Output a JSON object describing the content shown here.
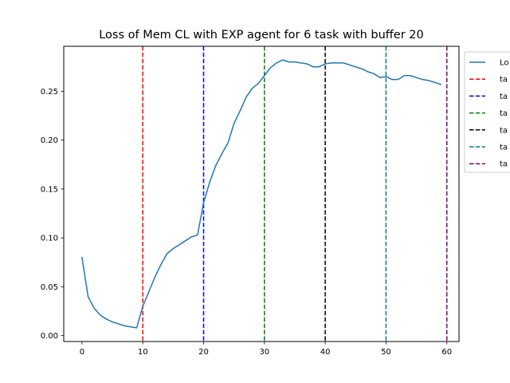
{
  "chart_data": {
    "type": "line",
    "title": "Loss of Mem CL with EXP agent for 6 task with buffer 20",
    "xlabel": "",
    "ylabel": "",
    "xlim": [
      -3,
      62
    ],
    "ylim": [
      -0.006,
      0.296
    ],
    "grid": false,
    "legend_placement": "outside-right-top",
    "x_ticks": [
      0,
      10,
      20,
      30,
      40,
      50,
      60
    ],
    "x_tick_labels": [
      "0",
      "10",
      "20",
      "30",
      "40",
      "50",
      "60"
    ],
    "y_ticks": [
      0.0,
      0.05,
      0.1,
      0.15,
      0.2,
      0.25
    ],
    "y_tick_labels": [
      "0.00",
      "0.05",
      "0.10",
      "0.15",
      "0.20",
      "0.25"
    ],
    "series": [
      {
        "name": "Lo",
        "color": "#1f77b4",
        "x": [
          0,
          1,
          2,
          3,
          4,
          5,
          6,
          7,
          8,
          9,
          10,
          11,
          12,
          13,
          14,
          15,
          16,
          17,
          18,
          19,
          20,
          21,
          22,
          23,
          24,
          25,
          26,
          27,
          28,
          29,
          30,
          31,
          32,
          33,
          34,
          35,
          36,
          37,
          38,
          39,
          40,
          41,
          42,
          43,
          44,
          45,
          46,
          47,
          48,
          49,
          50,
          51,
          52,
          53,
          54,
          55,
          56,
          57,
          58,
          59
        ],
        "y": [
          0.08,
          0.04,
          0.028,
          0.021,
          0.017,
          0.014,
          0.012,
          0.01,
          0.009,
          0.008,
          0.03,
          0.045,
          0.06,
          0.073,
          0.084,
          0.089,
          0.093,
          0.097,
          0.101,
          0.103,
          0.136,
          0.157,
          0.174,
          0.186,
          0.197,
          0.217,
          0.23,
          0.244,
          0.253,
          0.258,
          0.266,
          0.274,
          0.279,
          0.282,
          0.28,
          0.28,
          0.279,
          0.278,
          0.275,
          0.275,
          0.278,
          0.279,
          0.279,
          0.279,
          0.277,
          0.275,
          0.273,
          0.27,
          0.268,
          0.264,
          0.265,
          0.262,
          0.262,
          0.266,
          0.266,
          0.264,
          0.262,
          0.261,
          0.259,
          0.257
        ]
      }
    ],
    "task_lines": [
      {
        "name": "ta",
        "x": 10,
        "color": "#ff0000"
      },
      {
        "name": "ta",
        "x": 20,
        "color": "#0000ff"
      },
      {
        "name": "ta",
        "x": 30,
        "color": "#008000"
      },
      {
        "name": "ta",
        "x": 40,
        "color": "#000000"
      },
      {
        "name": "ta",
        "x": 50,
        "color": "#008080"
      },
      {
        "name": "ta",
        "x": 60,
        "color": "#800080"
      }
    ]
  }
}
